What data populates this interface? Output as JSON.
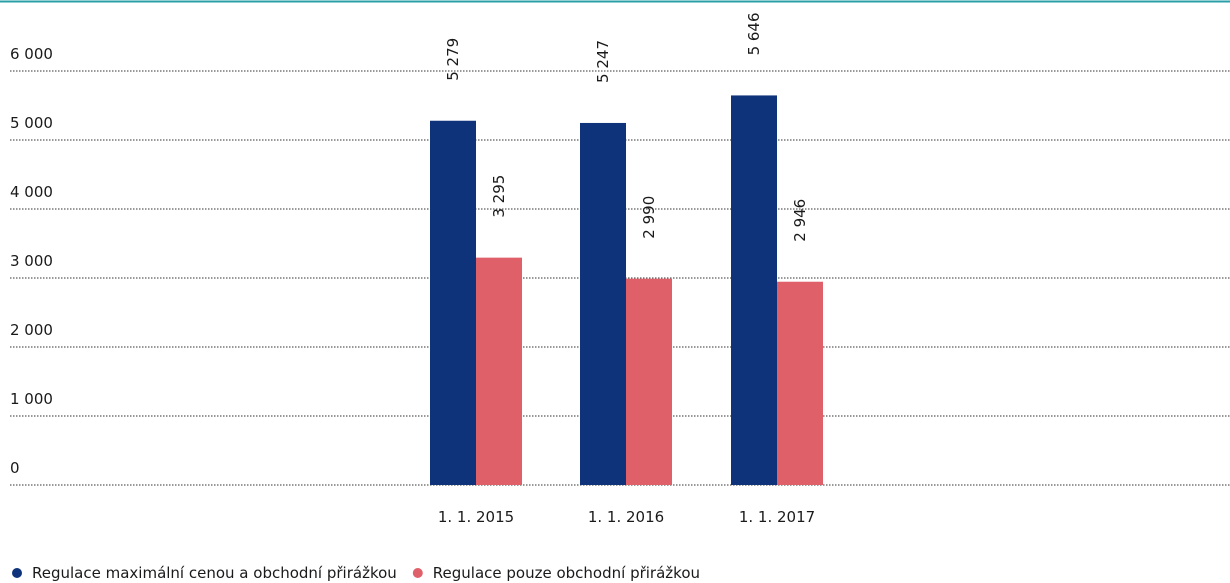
{
  "chart_data": {
    "type": "bar",
    "categories": [
      "1. 1. 2015",
      "1. 1. 2016",
      "1. 1. 2017"
    ],
    "series": [
      {
        "name": "Regulace maximální cenou a obchodní přirážkou",
        "color": "#0e337a",
        "values": [
          5279,
          5247,
          5646
        ],
        "value_labels": [
          "5 279",
          "5 247",
          "5 646"
        ]
      },
      {
        "name": "Regulace pouze obchodní přirážkou",
        "color": "#e0606a",
        "values": [
          3295,
          2990,
          2946
        ],
        "value_labels": [
          "3 295",
          "2 990",
          "2 946"
        ]
      }
    ],
    "ylim": [
      0,
      6000
    ],
    "yticks": [
      0,
      {
        "value": 1000,
        "label": "1 000"
      },
      {
        "value": 2000,
        "label": "2 000"
      },
      {
        "value": 3000,
        "label": "3 000"
      },
      {
        "value": 4000,
        "label": "4 000"
      },
      {
        "value": 5000,
        "label": "5 000"
      },
      {
        "value": 6000,
        "label": "6 000"
      }
    ],
    "grid": true,
    "legend": "bottom-left"
  }
}
